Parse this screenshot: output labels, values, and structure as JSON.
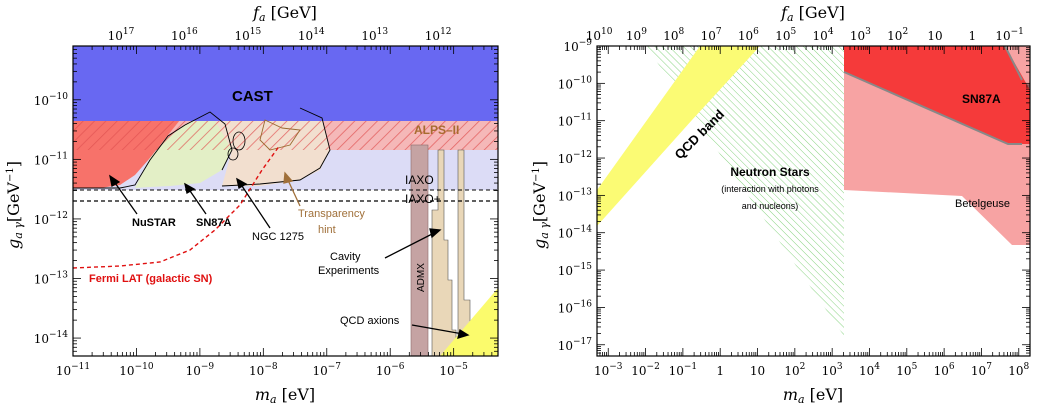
{
  "figure": {
    "panels": [
      "left",
      "right"
    ]
  },
  "chart_data": [
    {
      "type": "area",
      "panel": "left",
      "xlabel": "m_a [eV]",
      "ylabel": "g_aγ [GeV^-1]",
      "top_xlabel": "f_a [GeV]",
      "x_scale": "log",
      "y_scale": "log",
      "xlim": [
        1e-11,
        5e-05
      ],
      "ylim": [
        5e-15,
        8e-10
      ],
      "x_ticks": [
        {
          "v": 1e-11,
          "label": "10^-11"
        },
        {
          "v": 1e-10,
          "label": "10^-10"
        },
        {
          "v": 1e-09,
          "label": "10^-9"
        },
        {
          "v": 1e-08,
          "label": "10^-8"
        },
        {
          "v": 1e-07,
          "label": "10^-7"
        },
        {
          "v": 1e-06,
          "label": "10^-6"
        },
        {
          "v": 1e-05,
          "label": "10^-5"
        }
      ],
      "y_ticks": [
        {
          "v": 1e-14,
          "label": "10^-14"
        },
        {
          "v": 1e-13,
          "label": "10^-13"
        },
        {
          "v": 1e-12,
          "label": "10^-12"
        },
        {
          "v": 1e-11,
          "label": "10^-11"
        },
        {
          "v": 1e-10,
          "label": "10^-10"
        }
      ],
      "top_ticks": [
        {
          "m": 5.7e-11,
          "label": "10^17"
        },
        {
          "m": 5.7e-10,
          "label": "10^16"
        },
        {
          "m": 5.7e-09,
          "label": "10^15"
        },
        {
          "m": 5.7e-08,
          "label": "10^14"
        },
        {
          "m": 5.7e-07,
          "label": "10^13"
        },
        {
          "m": 5.7e-06,
          "label": "10^12"
        }
      ],
      "regions": [
        {
          "name": "CAST",
          "color": "#6a6af5",
          "polygon": [
            [
              1e-11,
              8e-10
            ],
            [
              5e-05,
              8e-10
            ],
            [
              5e-05,
              6.6e-11
            ],
            [
              1e-11,
              6.6e-11
            ]
          ]
        },
        {
          "name": "ALPS-II",
          "color": "#f5a6a6",
          "hatch": "#e06060",
          "polygon": [
            [
              1e-11,
              6.6e-11
            ],
            [
              5e-05,
              6.6e-11
            ],
            [
              5e-05,
              2e-11
            ],
            [
              1e-11,
              2e-11
            ]
          ]
        },
        {
          "name": "IAXO",
          "color": "#dcdcf6",
          "polygon": [
            [
              1e-11,
              2e-11
            ],
            [
              5e-05,
              2e-11
            ],
            [
              5e-05,
              4.2e-12
            ],
            [
              1e-11,
              4.2e-12
            ]
          ]
        },
        {
          "name": "NuSTAR",
          "color": "#f7726a",
          "polygon": [
            [
              1e-11,
              6.6e-11
            ],
            [
              1.2e-10,
              6.6e-11
            ],
            [
              1.2e-10,
              4e-12
            ],
            [
              1e-11,
              4e-12
            ]
          ]
        }
      ],
      "lines": [
        {
          "name": "IAXO",
          "style": "dashed",
          "y": 4.2e-12
        },
        {
          "name": "IAXO+",
          "style": "dashed",
          "y": 2.7e-12
        },
        {
          "name": "Fermi LAT (galactic SN)",
          "style": "dashed",
          "color": "#e01010",
          "points": [
            [
              1e-11,
              2.5e-13
            ],
            [
              2e-10,
              2.8e-13
            ],
            [
              1e-09,
              7e-13
            ],
            [
              5e-09,
              3e-12
            ],
            [
              2e-08,
              1.3e-11
            ],
            [
              3e-08,
              2e-11
            ]
          ]
        }
      ],
      "bands": [
        {
          "name": "ADMX",
          "x": [
            2e-06,
            3.4e-06
          ],
          "y": [
            5e-15,
            2e-11
          ],
          "color": "#c5a3a3"
        },
        {
          "name": "Cavity Experiments",
          "x": [
            3.6e-06,
            1.1e-05
          ],
          "color": "#e9d7b8"
        },
        {
          "name": "QCD axions",
          "color": "#fbfb6c"
        }
      ],
      "annotations": [
        "CAST",
        "ALPS–II",
        "IAXO",
        "IAXO+",
        "NuSTAR",
        "SN87A",
        "NGC 1275",
        "Transparency",
        "hint",
        "Fermi LAT (galactic SN)",
        "ADMX",
        "Cavity",
        "Experiments",
        "QCD axions"
      ]
    },
    {
      "type": "area",
      "panel": "right",
      "xlabel": "m_a [eV]",
      "ylabel": "g_aγ [GeV^-1]",
      "top_xlabel": "f_a [GeV]",
      "x_scale": "log",
      "y_scale": "log",
      "xlim": [
        0.0005,
        200000000.0
      ],
      "ylim": [
        5e-18,
        1e-09
      ],
      "x_ticks": [
        {
          "v": 0.001,
          "label": "10^-3"
        },
        {
          "v": 0.01,
          "label": "10^-2"
        },
        {
          "v": 0.1,
          "label": "10^-1"
        },
        {
          "v": 1,
          "label": "1"
        },
        {
          "v": 10,
          "label": "10"
        },
        {
          "v": 100,
          "label": "10^2"
        },
        {
          "v": 1000.0,
          "label": "10^3"
        },
        {
          "v": 10000.0,
          "label": "10^4"
        },
        {
          "v": 100000.0,
          "label": "10^5"
        },
        {
          "v": 1000000.0,
          "label": "10^6"
        },
        {
          "v": 10000000.0,
          "label": "10^7"
        },
        {
          "v": 100000000.0,
          "label": "10^8"
        }
      ],
      "y_ticks": [
        {
          "v": 1e-17,
          "label": "10^-17"
        },
        {
          "v": 1e-16,
          "label": "10^-16"
        },
        {
          "v": 1e-15,
          "label": "10^-15"
        },
        {
          "v": 1e-14,
          "label": "10^-14"
        },
        {
          "v": 1e-13,
          "label": "10^-13"
        },
        {
          "v": 1e-12,
          "label": "10^-12"
        },
        {
          "v": 1e-11,
          "label": "10^-11"
        },
        {
          "v": 1e-10,
          "label": "10^-10"
        },
        {
          "v": 1e-09,
          "label": "10^-9"
        }
      ],
      "top_ticks": [
        {
          "m": 0.00057,
          "label": "10^10"
        },
        {
          "m": 0.0057,
          "label": "10^9"
        },
        {
          "m": 0.057,
          "label": "10^8"
        },
        {
          "m": 0.57,
          "label": "10^7"
        },
        {
          "m": 5.7,
          "label": "10^6"
        },
        {
          "m": 57,
          "label": "10^5"
        },
        {
          "m": 570,
          "label": "10^4"
        },
        {
          "m": 5700,
          "label": "10^3"
        },
        {
          "m": 57000,
          "label": "10^2"
        },
        {
          "m": 570000,
          "label": "10"
        },
        {
          "m": 5700000,
          "label": "1"
        },
        {
          "m": 57000000,
          "label": "10^-1"
        }
      ],
      "regions": [
        {
          "name": "QCD band",
          "color": "#fbfb74",
          "polygon": [
            [
              0.0005,
              5e-13
            ],
            [
              0.0005,
              1.5e-14
            ],
            [
              4,
              1e-09
            ],
            [
              200000.0,
              1e-09
            ],
            [
              200000.0,
              1e-09
            ]
          ]
        },
        {
          "name": "Neutron Stars",
          "color": "#a8e0a0",
          "hatch": true,
          "polygon": [
            [
              0.02,
              1e-09
            ],
            [
              1100.0,
              1e-09
            ],
            [
              1100.0,
              1.2e-17
            ]
          ]
        },
        {
          "name": "Betelgeuse",
          "color": "#f7a3a3",
          "polygon": [
            [
              1000.0,
              1e-09
            ],
            [
              150000000.0,
              1e-09
            ],
            [
              150000000.0,
              5e-15
            ],
            [
              80000000.0,
              5e-15
            ],
            [
              1000.0,
              3e-13
            ]
          ]
        },
        {
          "name": "SN87A",
          "color": "#f53a3a",
          "polygon": [
            [
              1000.0,
              1e-09
            ],
            [
              60000000.0,
              1e-09
            ],
            [
              150000000.0,
              3e-10
            ],
            [
              150000000.0,
              3e-12
            ],
            [
              60000000.0,
              3e-12
            ],
            [
              1000.0,
              1.5e-10
            ]
          ]
        }
      ],
      "annotations": [
        "QCD band",
        "Neutron Stars",
        "(interaction with photons",
        "and nucleons)",
        "SN87A",
        "Betelgeuse"
      ]
    }
  ]
}
